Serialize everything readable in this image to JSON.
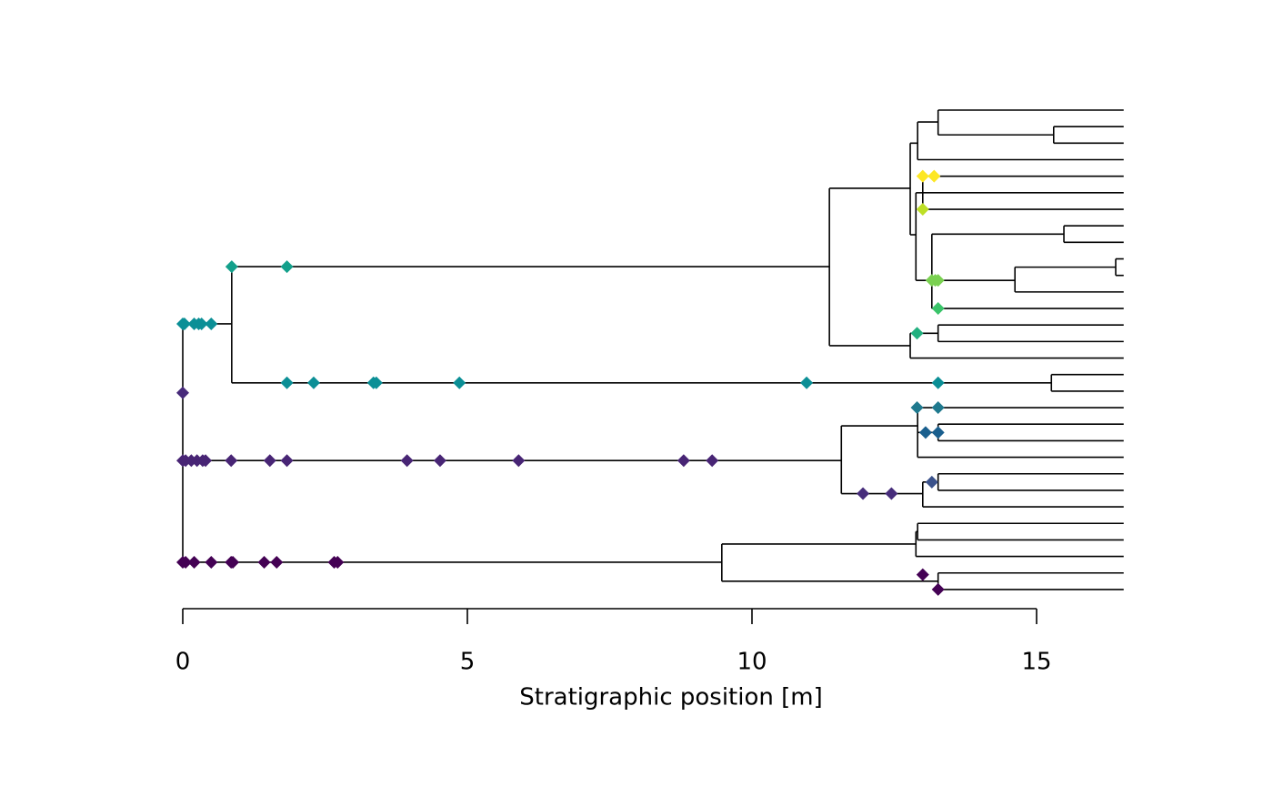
{
  "chart_data": {
    "type": "tree",
    "xlabel": "Stratigraphic position [m]",
    "xlim": [
      0,
      15
    ],
    "xticks": [
      0,
      5,
      10,
      15
    ],
    "branch_color": "#000000",
    "horizontal": [
      [
        0,
        0.86,
        12.93
      ],
      [
        0.86,
        11.36,
        9.47
      ],
      [
        0.86,
        15.26,
        16.5
      ],
      [
        15.26,
        16.53,
        16
      ],
      [
        15.26,
        16.53,
        17
      ],
      [
        11.36,
        12.78,
        4.73
      ],
      [
        11.36,
        12.78,
        14.25
      ],
      [
        12.78,
        12.91,
        2
      ],
      [
        12.78,
        12.88,
        7.54
      ],
      [
        12.91,
        13.27,
        0.72
      ],
      [
        12.91,
        16.53,
        3
      ],
      [
        13.27,
        16.53,
        0
      ],
      [
        13.27,
        15.3,
        1.5
      ],
      [
        15.3,
        16.53,
        1
      ],
      [
        15.3,
        16.53,
        2
      ],
      [
        13.0,
        16.53,
        4
      ],
      [
        13.0,
        16.53,
        5
      ],
      [
        13.0,
        16.53,
        6
      ],
      [
        12.88,
        13.0,
        5
      ],
      [
        12.88,
        13.16,
        10.3
      ],
      [
        13.16,
        15.48,
        7.5
      ],
      [
        15.48,
        16.53,
        7
      ],
      [
        15.48,
        16.53,
        8
      ],
      [
        13.16,
        14.62,
        10.3
      ],
      [
        14.62,
        16.39,
        9.5
      ],
      [
        16.39,
        16.53,
        9
      ],
      [
        16.39,
        16.53,
        10
      ],
      [
        14.62,
        16.53,
        11
      ],
      [
        13.16,
        16.53,
        12
      ],
      [
        12.78,
        13.27,
        13.5
      ],
      [
        13.27,
        16.53,
        13
      ],
      [
        13.27,
        16.53,
        14
      ],
      [
        12.78,
        16.53,
        15
      ],
      [
        0,
        11.57,
        21.2
      ],
      [
        11.57,
        12.91,
        19.1
      ],
      [
        12.91,
        16.53,
        18
      ],
      [
        12.91,
        13.27,
        19.5
      ],
      [
        13.27,
        16.53,
        19
      ],
      [
        13.27,
        16.53,
        20
      ],
      [
        12.91,
        16.53,
        21
      ],
      [
        11.57,
        13.0,
        23.2
      ],
      [
        13.0,
        13.27,
        22.5
      ],
      [
        13.27,
        16.53,
        22
      ],
      [
        13.27,
        16.53,
        23
      ],
      [
        13.0,
        16.53,
        24
      ],
      [
        0,
        9.47,
        27.35
      ],
      [
        9.47,
        12.88,
        26.25
      ],
      [
        12.88,
        12.91,
        25.5
      ],
      [
        12.91,
        16.53,
        25
      ],
      [
        12.91,
        16.53,
        26
      ],
      [
        12.88,
        16.53,
        27
      ],
      [
        9.47,
        13.27,
        28.5
      ],
      [
        13.27,
        16.53,
        28
      ],
      [
        13.27,
        16.53,
        29
      ]
    ],
    "vertical": [
      [
        0,
        12.93,
        27.35
      ],
      [
        0.86,
        9.47,
        16.5
      ],
      [
        15.26,
        16,
        17
      ],
      [
        11.36,
        4.73,
        14.25
      ],
      [
        12.78,
        2,
        7.54
      ],
      [
        12.91,
        0.72,
        3
      ],
      [
        13.27,
        0,
        1.5
      ],
      [
        15.3,
        1,
        2
      ],
      [
        13.0,
        4,
        6
      ],
      [
        12.88,
        5,
        10.3
      ],
      [
        13.16,
        7.5,
        12
      ],
      [
        15.48,
        7,
        8
      ],
      [
        14.62,
        9.5,
        11
      ],
      [
        16.39,
        9,
        10
      ],
      [
        12.78,
        13.5,
        15
      ],
      [
        13.27,
        13,
        14
      ],
      [
        11.57,
        19.1,
        23.2
      ],
      [
        12.91,
        18,
        21
      ],
      [
        13.27,
        19,
        20
      ],
      [
        13.0,
        22.5,
        24
      ],
      [
        13.27,
        22,
        23
      ],
      [
        9.47,
        26.25,
        28.5
      ],
      [
        12.88,
        25.5,
        27
      ],
      [
        12.91,
        25,
        26
      ],
      [
        13.27,
        28,
        29
      ]
    ],
    "markers": [
      {
        "color": "#0b8f96",
        "row": 12.93,
        "x": [
          0,
          0.03,
          0.2,
          0.28,
          0.33,
          0.5
        ]
      },
      {
        "color": "#13a08b",
        "row": 9.47,
        "x": [
          0.86,
          1.83
        ]
      },
      {
        "color": "#0b8f96",
        "row": 16.5,
        "x": [
          1.83,
          2.3,
          3.35,
          3.4,
          4.86,
          10.96,
          13.27
        ]
      },
      {
        "color": "#472a7a",
        "row": 17.1,
        "x": [
          0
        ]
      },
      {
        "color": "#482575",
        "row": 21.2,
        "x": [
          0,
          0.05,
          0.15,
          0.25,
          0.35,
          0.4,
          0.85,
          1.53,
          1.83,
          3.94,
          4.52,
          5.9,
          8.8,
          9.3
        ]
      },
      {
        "color": "#440154",
        "row": 27.35,
        "x": [
          0,
          0.05,
          0.2,
          0.5,
          0.85,
          0.88,
          1.43,
          1.65,
          2.66,
          2.72
        ]
      },
      {
        "color": "#440154",
        "row": 28.1,
        "x": [
          13.0
        ]
      },
      {
        "color": "#440154",
        "row": 29,
        "x": [
          13.27
        ]
      },
      {
        "color": "#472d7b",
        "row": 23.2,
        "x": [
          11.95,
          12.45
        ]
      },
      {
        "color": "#3b528b",
        "row": 22.5,
        "x": [
          13.16
        ]
      },
      {
        "color": "#1a5f8e",
        "row": 19.5,
        "x": [
          13.05,
          13.27
        ]
      },
      {
        "color": "#1f798e",
        "row": 18,
        "x": [
          12.9,
          13.27
        ]
      },
      {
        "color": "#22b07f",
        "row": 13.5,
        "x": [
          12.9
        ]
      },
      {
        "color": "#3ac46a",
        "row": 12,
        "x": [
          13.27
        ]
      },
      {
        "color": "#7ad151",
        "row": 10.3,
        "x": [
          13.16,
          13.22,
          13.27
        ]
      },
      {
        "color": "#bddf26",
        "row": 6,
        "x": [
          13.0
        ]
      },
      {
        "color": "#fde725",
        "row": 4,
        "x": [
          13.0,
          13.2
        ]
      }
    ]
  }
}
